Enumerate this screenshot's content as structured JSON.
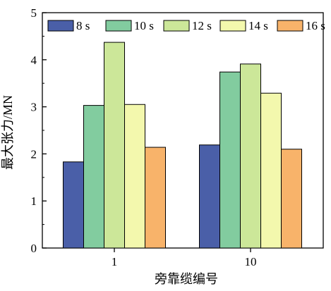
{
  "chart_data": {
    "type": "bar",
    "categories": [
      "1",
      "10"
    ],
    "series": [
      {
        "name": "8 s",
        "values": [
          1.83,
          2.19
        ],
        "color": "#4a5fa8"
      },
      {
        "name": "10 s",
        "values": [
          3.03,
          3.74
        ],
        "color": "#82cc9f"
      },
      {
        "name": "12 s",
        "values": [
          4.37,
          3.91
        ],
        "color": "#cce799"
      },
      {
        "name": "14 s",
        "values": [
          3.05,
          3.29
        ],
        "color": "#f3f8ad"
      },
      {
        "name": "16 s",
        "values": [
          2.14,
          2.1
        ],
        "color": "#f8b36a"
      }
    ],
    "xlabel": "旁靠缆编号",
    "ylabel": "最大张力/MN",
    "ylim": [
      0,
      5
    ],
    "yticks": [
      "0",
      "1",
      "2",
      "3",
      "4",
      "5"
    ],
    "grid": false,
    "legend_position": "top"
  }
}
